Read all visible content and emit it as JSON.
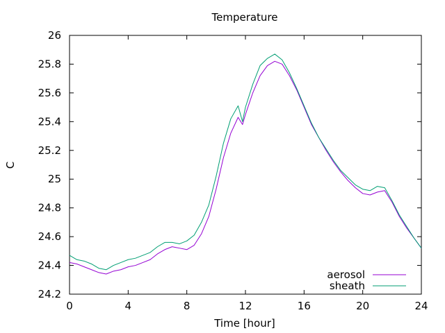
{
  "chart_data": {
    "type": "line",
    "title": "Temperature",
    "xlabel": "Time [hour]",
    "ylabel": "C",
    "xlim": [
      0,
      24
    ],
    "ylim": [
      24.2,
      26
    ],
    "xticks": [
      0,
      4,
      8,
      12,
      16,
      20,
      24
    ],
    "xtick_labels": [
      "0",
      "4",
      "8",
      "12",
      "16",
      "20",
      "24"
    ],
    "yticks": [
      24.2,
      24.4,
      24.6,
      24.8,
      25,
      25.2,
      25.4,
      25.6,
      25.8,
      26
    ],
    "ytick_labels": [
      "24.2",
      "24.4",
      "24.6",
      "24.8",
      "25",
      "25.2",
      "25.4",
      "25.6",
      "25.8",
      "26"
    ],
    "grid": false,
    "legend_position": "bottom-right",
    "series": [
      {
        "name": "aerosol",
        "color": "#9400d3",
        "x": [
          0,
          0.5,
          1,
          1.5,
          2,
          2.5,
          3,
          3.5,
          4,
          4.5,
          5,
          5.5,
          6,
          6.5,
          7,
          7.5,
          8,
          8.5,
          9,
          9.5,
          10,
          10.5,
          11,
          11.5,
          11.8,
          12,
          12.5,
          13,
          13.5,
          14,
          14.5,
          15,
          15.5,
          16,
          16.5,
          17,
          17.5,
          18,
          18.5,
          19,
          19.5,
          20,
          20.5,
          21,
          21.5,
          22,
          22.5,
          23,
          23.5,
          24
        ],
        "y": [
          24.42,
          24.41,
          24.39,
          24.37,
          24.35,
          24.34,
          24.36,
          24.37,
          24.39,
          24.4,
          24.42,
          24.44,
          24.48,
          24.51,
          24.53,
          24.52,
          24.51,
          24.54,
          24.62,
          24.74,
          24.93,
          25.15,
          25.32,
          25.43,
          25.38,
          25.45,
          25.6,
          25.72,
          25.79,
          25.82,
          25.8,
          25.72,
          25.62,
          25.5,
          25.38,
          25.29,
          25.2,
          25.12,
          25.05,
          24.99,
          24.94,
          24.9,
          24.89,
          24.91,
          24.92,
          24.84,
          24.74,
          24.66,
          24.59,
          24.52
        ]
      },
      {
        "name": "sheath",
        "color": "#009e73",
        "x": [
          0,
          0.5,
          1,
          1.5,
          2,
          2.5,
          3,
          3.5,
          4,
          4.5,
          5,
          5.5,
          6,
          6.5,
          7,
          7.5,
          8,
          8.5,
          9,
          9.5,
          10,
          10.5,
          11,
          11.5,
          11.8,
          12,
          12.5,
          13,
          13.5,
          14,
          14.5,
          15,
          15.5,
          16,
          16.5,
          17,
          17.5,
          18,
          18.5,
          19,
          19.5,
          20,
          20.5,
          21,
          21.5,
          22,
          22.5,
          23,
          23.5,
          24
        ],
        "y": [
          24.47,
          24.44,
          24.43,
          24.41,
          24.38,
          24.37,
          24.4,
          24.42,
          24.44,
          24.45,
          24.47,
          24.49,
          24.53,
          24.56,
          24.56,
          24.55,
          24.57,
          24.61,
          24.7,
          24.82,
          25.02,
          25.25,
          25.42,
          25.51,
          25.4,
          25.5,
          25.66,
          25.79,
          25.84,
          25.87,
          25.83,
          25.74,
          25.63,
          25.51,
          25.39,
          25.29,
          25.21,
          25.13,
          25.06,
          25.01,
          24.96,
          24.93,
          24.92,
          24.95,
          24.94,
          24.85,
          24.75,
          24.67,
          24.59,
          24.52
        ]
      }
    ]
  }
}
